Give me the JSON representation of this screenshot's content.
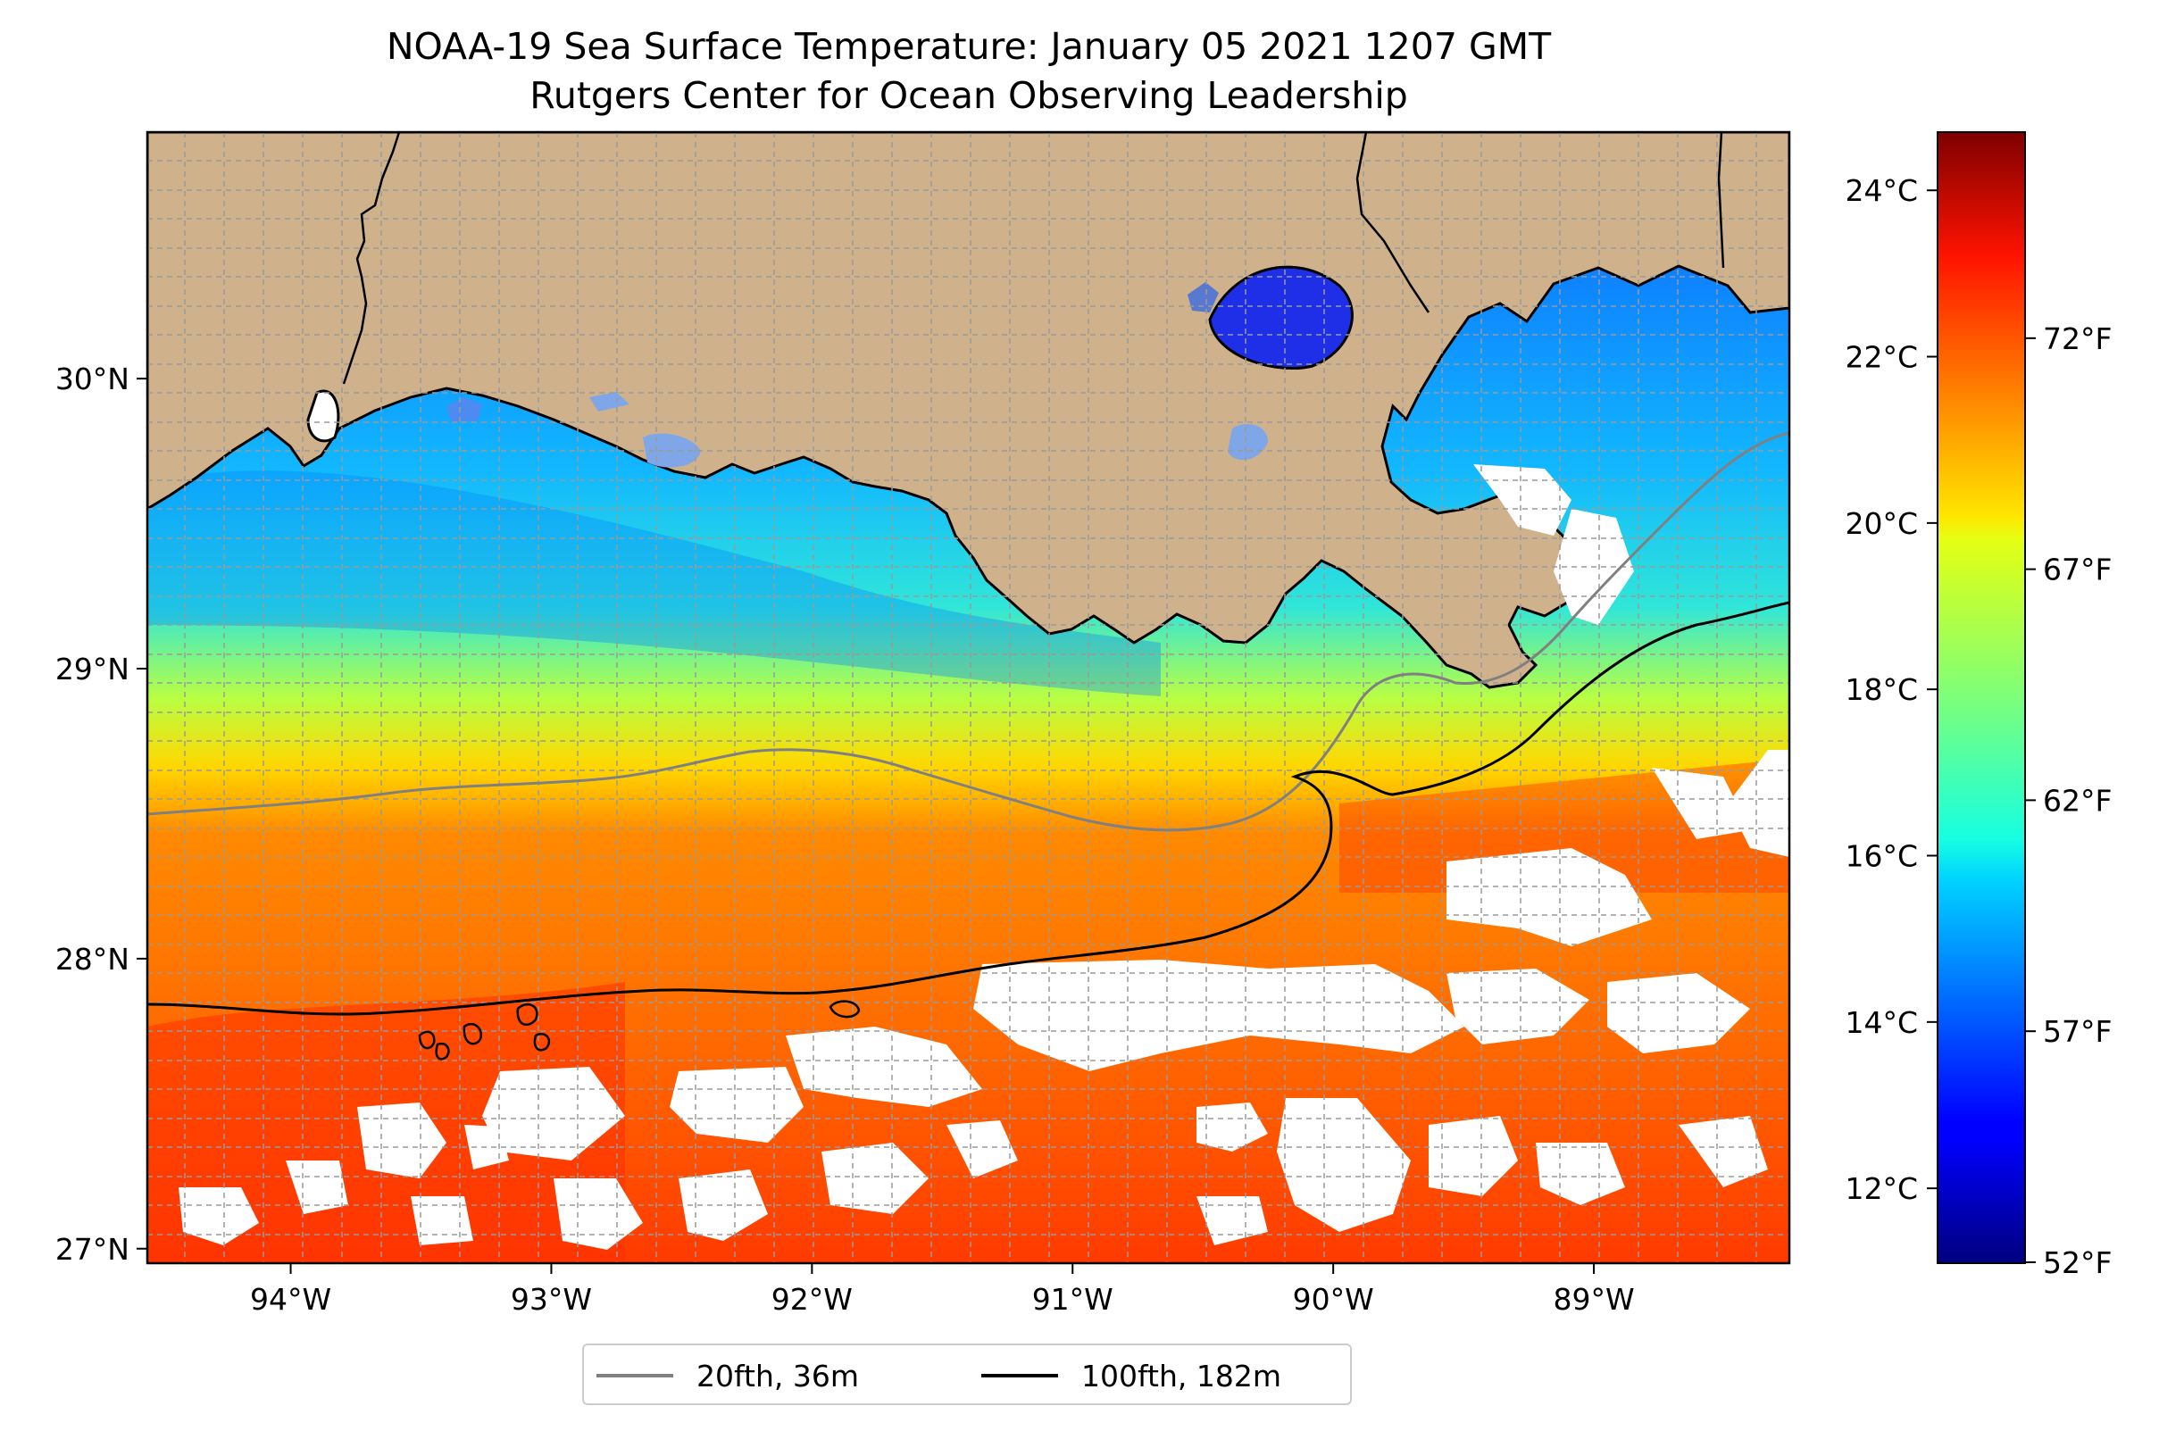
{
  "title_line1": "NOAA-19 Sea Surface Temperature: January 05 2021 1207 GMT",
  "title_line2": "Rutgers Center for Ocean Observing Leadership",
  "map": {
    "lon_range": [
      -94.55,
      -88.25
    ],
    "lat_range": [
      26.95,
      30.85
    ],
    "lon_ticks": [
      {
        "value": -94,
        "label": "94°W"
      },
      {
        "value": -93,
        "label": "93°W"
      },
      {
        "value": -92,
        "label": "92°W"
      },
      {
        "value": -91,
        "label": "91°W"
      },
      {
        "value": -90,
        "label": "90°W"
      },
      {
        "value": -89,
        "label": "89°W"
      }
    ],
    "lat_ticks": [
      {
        "value": 27,
        "label": "27°N"
      },
      {
        "value": 28,
        "label": "28°N"
      },
      {
        "value": 29,
        "label": "29°N"
      },
      {
        "value": 30,
        "label": "30°N"
      }
    ],
    "gridlines": true,
    "land_color": "#cfb28c",
    "no_data_color": "#ffffff"
  },
  "colorbar": {
    "colormap": "jet",
    "celsius_range": [
      11.1,
      24.7
    ],
    "celsius_ticks": [
      {
        "value": 12,
        "label": "12°C"
      },
      {
        "value": 14,
        "label": "14°C"
      },
      {
        "value": 16,
        "label": "16°C"
      },
      {
        "value": 18,
        "label": "18°C"
      },
      {
        "value": 20,
        "label": "20°C"
      },
      {
        "value": 22,
        "label": "22°C"
      },
      {
        "value": 24,
        "label": "24°C"
      }
    ],
    "fahrenheit_ticks": [
      {
        "value": 52,
        "label": "52°F"
      },
      {
        "value": 57,
        "label": "57°F"
      },
      {
        "value": 62,
        "label": "62°F"
      },
      {
        "value": 67,
        "label": "67°F"
      },
      {
        "value": 72,
        "label": "72°F"
      }
    ]
  },
  "legend": {
    "entries": [
      {
        "label": "20fth, 36m",
        "color": "#808080"
      },
      {
        "label": "100fth, 182m",
        "color": "#000000"
      }
    ],
    "placement": "bottom-center"
  }
}
